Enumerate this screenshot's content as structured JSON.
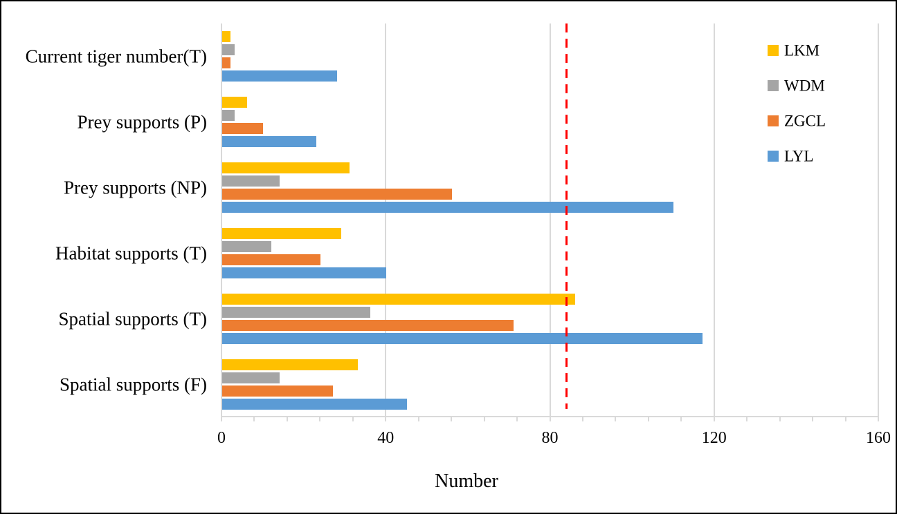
{
  "chart_data": {
    "type": "bar",
    "orientation": "horizontal",
    "title": "",
    "xlabel": "Number",
    "ylabel": "",
    "xlim": [
      0,
      160
    ],
    "x_major_ticks": [
      0,
      40,
      80,
      120,
      160
    ],
    "x_minor_tick_interval": 8,
    "gridlines": "vertical at major ticks",
    "gridline_color": "#D9D9D9",
    "legend_position": "top-right",
    "categories": [
      "Current tiger number(T)",
      "Prey supports (P)",
      "Prey supports (NP)",
      "Habitat supports (T)",
      "Spatial supports (T)",
      "Spatial supports (F)"
    ],
    "series": [
      {
        "name": "LKM",
        "color": "#FFC000",
        "values": [
          2,
          6,
          31,
          29,
          86,
          33
        ]
      },
      {
        "name": "WDM",
        "color": "#A5A5A5",
        "values": [
          3,
          3,
          14,
          12,
          36,
          14
        ]
      },
      {
        "name": "ZGCL",
        "color": "#ED7D31",
        "values": [
          2,
          10,
          56,
          24,
          71,
          27
        ]
      },
      {
        "name": "LYL",
        "color": "#5B9BD5",
        "values": [
          28,
          23,
          110,
          40,
          117,
          45
        ]
      }
    ],
    "reference_line": {
      "value": 84,
      "color": "#FF0000",
      "style": "dashed"
    }
  }
}
